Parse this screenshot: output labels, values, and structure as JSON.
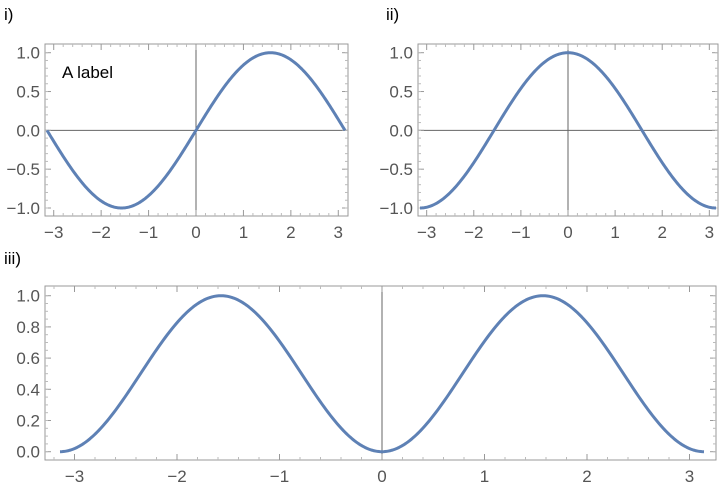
{
  "chart_data": [
    {
      "type": "line",
      "panel_label": "i)",
      "annotation": "A label",
      "function": "sin(x)",
      "xlim": [
        -3.14159,
        3.14159
      ],
      "ylim": [
        -1.05,
        1.05
      ],
      "xticks": [
        -3,
        -2,
        -1,
        0,
        1,
        2,
        3
      ],
      "yticks": [
        -1.0,
        -0.5,
        0.0,
        0.5,
        1.0
      ],
      "ytick_labels": [
        "−1.0",
        "−0.5",
        "0.0",
        "0.5",
        "1.0"
      ],
      "xtick_labels": [
        "−3",
        "−2",
        "−1",
        "0",
        "1",
        "2",
        "3"
      ],
      "axes_lines": true,
      "color": "#5e81b5"
    },
    {
      "type": "line",
      "panel_label": "ii)",
      "function": "cos(x)",
      "xlim": [
        -3.14159,
        3.14159
      ],
      "ylim": [
        -1.05,
        1.05
      ],
      "xticks": [
        -3,
        -2,
        -1,
        0,
        1,
        2,
        3
      ],
      "yticks": [
        -1.0,
        -0.5,
        0.0,
        0.5,
        1.0
      ],
      "ytick_labels": [
        "−1.0",
        "−0.5",
        "0.0",
        "0.5",
        "1.0"
      ],
      "xtick_labels": [
        "−3",
        "−2",
        "−1",
        "0",
        "1",
        "2",
        "3"
      ],
      "axes_lines": true,
      "color": "#5e81b5"
    },
    {
      "type": "line",
      "panel_label": "iii)",
      "function": "sin(x)^2",
      "xlim": [
        -3.14159,
        3.14159
      ],
      "ylim": [
        0,
        1.0
      ],
      "xticks": [
        -3,
        -2,
        -1,
        0,
        1,
        2,
        3
      ],
      "yticks": [
        0.0,
        0.2,
        0.4,
        0.6,
        0.8,
        1.0
      ],
      "ytick_labels": [
        "0.0",
        "0.2",
        "0.4",
        "0.6",
        "0.8",
        "1.0"
      ],
      "xtick_labels": [
        "−3",
        "−2",
        "−1",
        "0",
        "1",
        "2",
        "3"
      ],
      "axes_lines": true,
      "color": "#5e81b5"
    }
  ]
}
